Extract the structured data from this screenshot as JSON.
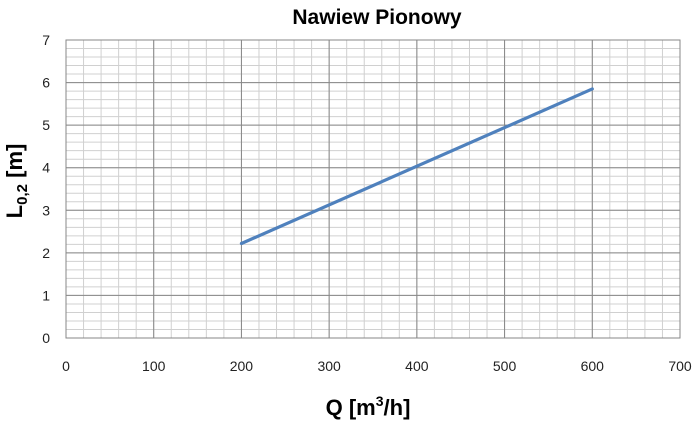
{
  "chart_data": {
    "type": "line",
    "title": "Nawiew Pionowy",
    "xlabel": {
      "main": "Q [m",
      "sup": "3",
      "tail": "/h]"
    },
    "ylabel": {
      "main": "L",
      "sub": "0,2",
      "tail": " [m]"
    },
    "xlim": [
      0,
      700
    ],
    "ylim": [
      0,
      7
    ],
    "xticks": [
      0,
      100,
      200,
      300,
      400,
      500,
      600,
      700
    ],
    "yticks": [
      0,
      1,
      2,
      3,
      4,
      5,
      6,
      7
    ],
    "minor_grid": true,
    "series": [
      {
        "color": "#4F81BD",
        "x": [
          200,
          600
        ],
        "y": [
          2.22,
          5.85
        ]
      }
    ]
  }
}
